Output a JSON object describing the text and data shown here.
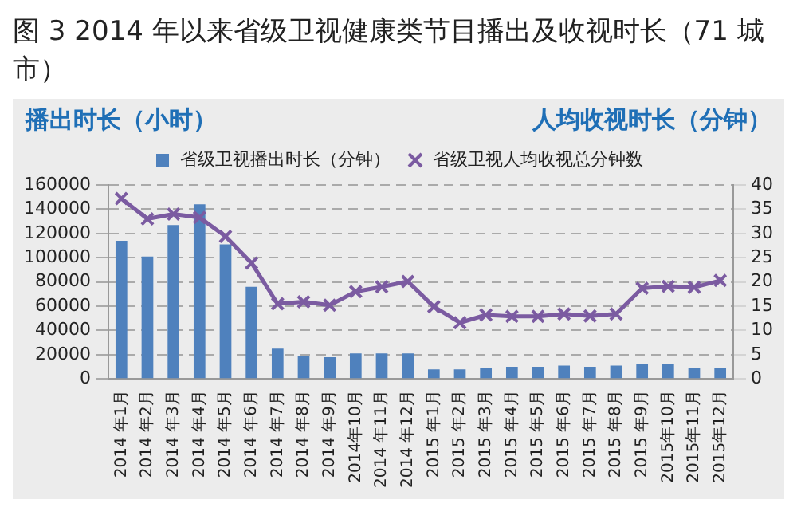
{
  "chart_data": {
    "type": "bar",
    "title": "图 3 2014 年以来省级卫视健康类节目播出及收视时长（71 城市）",
    "ylabel": "播出时长（小时）",
    "y2label": "人均收视时长（分钟）",
    "categories": [
      "2014 年1月",
      "2014 年2月",
      "2014 年3月",
      "2014 年4月",
      "2014 年5月",
      "2014 年6月",
      "2014 年7月",
      "2014 年8月",
      "2014 年9月",
      "2014年10月",
      "2014 年11月",
      "2014 年12月",
      "2015 年1月",
      "2015 年2月",
      "2015 年3月",
      "2015 年4月",
      "2015 年5月",
      "2015 年6月",
      "2015 年7月",
      "2015 年8月",
      "2015 年9月",
      "2015年10月",
      "2015年11月",
      "2015年12月"
    ],
    "series": [
      {
        "name": "省级卫视播出时长（分钟）",
        "color": "#4f81bd",
        "values": [
          114000,
          101000,
          127000,
          144000,
          111000,
          76000,
          25000,
          19000,
          18000,
          21000,
          21000,
          21000,
          8000,
          8000,
          9000,
          10000,
          10000,
          11000,
          10000,
          11000,
          12000,
          12000,
          9000,
          9000
        ]
      },
      {
        "name": "省级卫视人均收视总分钟数",
        "type": "line",
        "axis": "y2",
        "color": "#7b5ba1",
        "marker": "cross",
        "values": [
          37.2,
          33,
          34,
          33.3,
          29.4,
          23.9,
          15.5,
          15.9,
          15.2,
          18,
          19,
          20.1,
          14.9,
          11.6,
          13.2,
          12.9,
          12.9,
          13.4,
          13,
          13.4,
          18.7,
          19.1,
          18.9,
          20.3
        ]
      }
    ],
    "ylim": [
      0,
      160000
    ],
    "yticks": [
      0,
      20000,
      40000,
      60000,
      80000,
      100000,
      120000,
      140000,
      160000
    ],
    "y2lim": [
      0,
      40
    ],
    "y2ticks": [
      0,
      5,
      10,
      15,
      20,
      25,
      30,
      35,
      40
    ],
    "grid": "y",
    "legend": "top"
  }
}
